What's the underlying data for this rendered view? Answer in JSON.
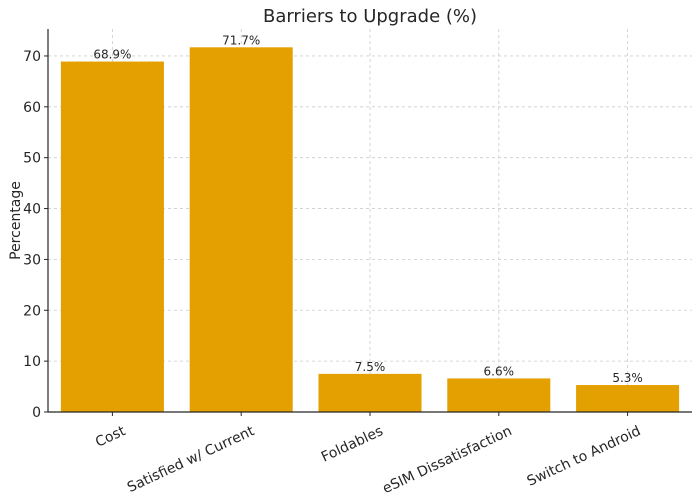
{
  "chart_data": {
    "type": "bar",
    "title": "Barriers to Upgrade (%)",
    "xlabel": "",
    "ylabel": "Percentage",
    "categories": [
      "Cost",
      "Satisfied w/ Current",
      "Foldables",
      "eSIM Dissatisfaction",
      "Switch to Android"
    ],
    "values": [
      68.9,
      71.7,
      7.5,
      6.6,
      5.3
    ],
    "data_labels": [
      "68.9%",
      "71.7%",
      "7.5%",
      "6.6%",
      "5.3%"
    ],
    "ylim": [
      0,
      75.3
    ],
    "yticks": [
      0,
      10,
      20,
      30,
      40,
      50,
      60,
      70
    ],
    "grid": true,
    "bar_color": "#E3A000",
    "x_tick_rotation": -25
  }
}
